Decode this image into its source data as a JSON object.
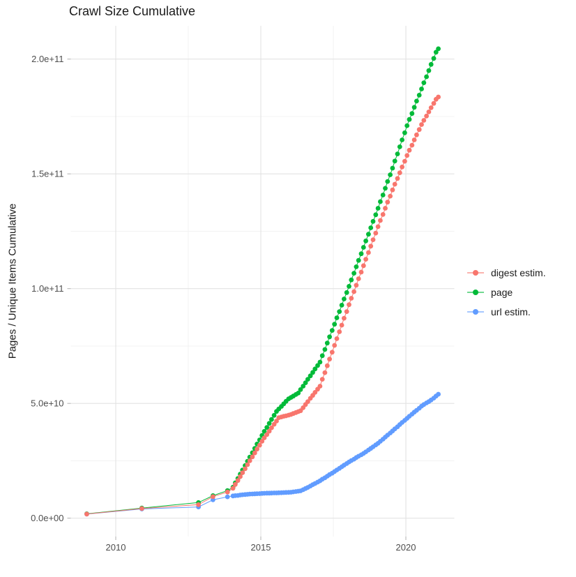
{
  "title": "Crawl Size Cumulative",
  "legend": {
    "items": [
      {
        "label": "digest estim.",
        "color": "#F8766D"
      },
      {
        "label": "page",
        "color": "#00BA38"
      },
      {
        "label": "url estim.",
        "color": "#619CFF"
      }
    ]
  },
  "colors": {
    "digest": "#F8766D",
    "page": "#00BA38",
    "url": "#619CFF",
    "grid_major": "#E2E2E2",
    "grid_minor": "#EFEFEF",
    "tick_mark": "#B0B0B0",
    "tick_label": "#4D4D4D",
    "title_text": "#1a1a1a"
  },
  "chart_data": {
    "type": "scatter",
    "title": "Crawl Size Cumulative",
    "xlabel": "",
    "ylabel": "Pages / Unique Items Cumulative",
    "value_unit": "pages, values in billions (1e9)",
    "grid": true,
    "legend_position": "right",
    "xlim": [
      2008.45,
      2021.67
    ],
    "ylim_billions": [
      -8,
      214.5
    ],
    "x_ticks": [
      {
        "value": 2010,
        "label": "2010"
      },
      {
        "value": 2015,
        "label": "2015"
      },
      {
        "value": 2020,
        "label": "2020"
      }
    ],
    "y_ticks": [
      {
        "value": 0,
        "label": "0.0e+00"
      },
      {
        "value": 50,
        "label": "5.0e+10"
      },
      {
        "value": 100,
        "label": "1.0e+11"
      },
      {
        "value": 150,
        "label": "1.5e+11"
      },
      {
        "value": 200,
        "label": "2.0e+11"
      }
    ],
    "x_minor": [
      2012.5,
      2017.5
    ],
    "y_minor": [
      25,
      75,
      125,
      175
    ],
    "z_order": [
      "page",
      "url estim.",
      "digest estim."
    ],
    "series": [
      {
        "name": "digest estim.",
        "color": "#F8766D",
        "points": [
          [
            2009.0,
            1.8
          ],
          [
            2010.9,
            4.2
          ],
          [
            2012.85,
            5.9
          ],
          [
            2013.35,
            9.4
          ],
          [
            2013.85,
            11.4
          ],
          [
            2014.04,
            13.0
          ],
          [
            2014.12,
            14.7
          ],
          [
            2014.21,
            16.4
          ],
          [
            2014.29,
            18.1
          ],
          [
            2014.37,
            19.8
          ],
          [
            2014.46,
            21.5
          ],
          [
            2014.54,
            23.3
          ],
          [
            2014.62,
            25.0
          ],
          [
            2014.71,
            26.7
          ],
          [
            2014.79,
            28.4
          ],
          [
            2014.87,
            30.1
          ],
          [
            2014.96,
            31.8
          ],
          [
            2015.04,
            33.5
          ],
          [
            2015.12,
            35.0
          ],
          [
            2015.21,
            36.4
          ],
          [
            2015.29,
            37.9
          ],
          [
            2015.37,
            39.4
          ],
          [
            2015.46,
            40.9
          ],
          [
            2015.54,
            42.3
          ],
          [
            2015.62,
            43.8
          ],
          [
            2015.71,
            44.1
          ],
          [
            2015.79,
            44.4
          ],
          [
            2015.87,
            44.6
          ],
          [
            2015.96,
            44.9
          ],
          [
            2016.04,
            45.2
          ],
          [
            2016.12,
            45.6
          ],
          [
            2016.21,
            46.0
          ],
          [
            2016.29,
            46.4
          ],
          [
            2016.37,
            46.8
          ],
          [
            2016.46,
            48.1
          ],
          [
            2016.54,
            49.5
          ],
          [
            2016.62,
            50.8
          ],
          [
            2016.71,
            52.2
          ],
          [
            2016.79,
            53.5
          ],
          [
            2016.87,
            54.8
          ],
          [
            2016.96,
            56.2
          ],
          [
            2017.04,
            57.5
          ],
          [
            2017.12,
            60.5
          ],
          [
            2017.21,
            63.4
          ],
          [
            2017.29,
            66.4
          ],
          [
            2017.37,
            69.3
          ],
          [
            2017.46,
            72.3
          ],
          [
            2017.54,
            75.3
          ],
          [
            2017.62,
            78.2
          ],
          [
            2017.71,
            81.2
          ],
          [
            2017.79,
            84.1
          ],
          [
            2017.87,
            87.1
          ],
          [
            2017.96,
            90.0
          ],
          [
            2018.04,
            93.0
          ],
          [
            2018.12,
            95.8
          ],
          [
            2018.21,
            98.7
          ],
          [
            2018.29,
            101.5
          ],
          [
            2018.37,
            104.3
          ],
          [
            2018.46,
            107.2
          ],
          [
            2018.54,
            110.0
          ],
          [
            2018.62,
            112.8
          ],
          [
            2018.71,
            115.7
          ],
          [
            2018.79,
            118.5
          ],
          [
            2018.87,
            121.3
          ],
          [
            2018.96,
            124.2
          ],
          [
            2019.04,
            127.0
          ],
          [
            2019.12,
            129.7
          ],
          [
            2019.21,
            132.3
          ],
          [
            2019.29,
            135.0
          ],
          [
            2019.37,
            137.7
          ],
          [
            2019.46,
            140.3
          ],
          [
            2019.54,
            143.0
          ],
          [
            2019.62,
            145.5
          ],
          [
            2019.71,
            148.0
          ],
          [
            2019.79,
            150.5
          ],
          [
            2019.87,
            153.0
          ],
          [
            2019.96,
            155.5
          ],
          [
            2020.04,
            158.0
          ],
          [
            2020.12,
            160.3
          ],
          [
            2020.21,
            162.5
          ],
          [
            2020.29,
            164.8
          ],
          [
            2020.37,
            167.0
          ],
          [
            2020.46,
            169.3
          ],
          [
            2020.54,
            171.5
          ],
          [
            2020.62,
            173.3
          ],
          [
            2020.71,
            175.2
          ],
          [
            2020.79,
            177.0
          ],
          [
            2020.87,
            178.8
          ],
          [
            2020.96,
            180.7
          ],
          [
            2021.04,
            182.5
          ],
          [
            2021.12,
            183.5
          ]
        ]
      },
      {
        "name": "page",
        "color": "#00BA38",
        "points": [
          [
            2009.0,
            1.9
          ],
          [
            2010.9,
            4.4
          ],
          [
            2012.85,
            6.8
          ],
          [
            2013.35,
            9.8
          ],
          [
            2013.85,
            12.0
          ],
          [
            2014.04,
            13.5
          ],
          [
            2014.12,
            15.4
          ],
          [
            2014.21,
            17.3
          ],
          [
            2014.29,
            19.2
          ],
          [
            2014.37,
            21.0
          ],
          [
            2014.46,
            22.9
          ],
          [
            2014.54,
            24.8
          ],
          [
            2014.62,
            26.6
          ],
          [
            2014.71,
            28.5
          ],
          [
            2014.79,
            30.4
          ],
          [
            2014.87,
            32.3
          ],
          [
            2014.96,
            34.1
          ],
          [
            2015.04,
            36.0
          ],
          [
            2015.12,
            37.8
          ],
          [
            2015.21,
            39.5
          ],
          [
            2015.29,
            41.3
          ],
          [
            2015.37,
            43.0
          ],
          [
            2015.46,
            44.8
          ],
          [
            2015.54,
            46.5
          ],
          [
            2015.62,
            47.6
          ],
          [
            2015.71,
            48.7
          ],
          [
            2015.79,
            49.8
          ],
          [
            2015.87,
            50.9
          ],
          [
            2015.96,
            52.0
          ],
          [
            2016.04,
            52.6
          ],
          [
            2016.12,
            53.2
          ],
          [
            2016.21,
            53.9
          ],
          [
            2016.29,
            54.5
          ],
          [
            2016.37,
            56.0
          ],
          [
            2016.46,
            57.5
          ],
          [
            2016.54,
            59.0
          ],
          [
            2016.62,
            60.5
          ],
          [
            2016.71,
            62.0
          ],
          [
            2016.79,
            63.5
          ],
          [
            2016.87,
            65.0
          ],
          [
            2016.96,
            66.5
          ],
          [
            2017.04,
            68.0
          ],
          [
            2017.12,
            70.8
          ],
          [
            2017.21,
            73.5
          ],
          [
            2017.29,
            76.3
          ],
          [
            2017.37,
            79.0
          ],
          [
            2017.46,
            81.8
          ],
          [
            2017.54,
            84.5
          ],
          [
            2017.62,
            87.3
          ],
          [
            2017.71,
            90.0
          ],
          [
            2017.79,
            92.8
          ],
          [
            2017.87,
            95.5
          ],
          [
            2017.96,
            98.3
          ],
          [
            2018.04,
            101.0
          ],
          [
            2018.12,
            103.8
          ],
          [
            2018.21,
            106.7
          ],
          [
            2018.29,
            109.5
          ],
          [
            2018.37,
            112.3
          ],
          [
            2018.46,
            115.2
          ],
          [
            2018.54,
            118.0
          ],
          [
            2018.62,
            120.8
          ],
          [
            2018.71,
            123.7
          ],
          [
            2018.79,
            126.5
          ],
          [
            2018.87,
            129.3
          ],
          [
            2018.96,
            132.2
          ],
          [
            2019.04,
            135.0
          ],
          [
            2019.12,
            137.9
          ],
          [
            2019.21,
            140.8
          ],
          [
            2019.29,
            143.7
          ],
          [
            2019.37,
            146.7
          ],
          [
            2019.46,
            149.6
          ],
          [
            2019.54,
            152.5
          ],
          [
            2019.62,
            155.6
          ],
          [
            2019.71,
            158.7
          ],
          [
            2019.79,
            161.8
          ],
          [
            2019.87,
            164.8
          ],
          [
            2019.96,
            167.9
          ],
          [
            2020.04,
            171.0
          ],
          [
            2020.12,
            173.7
          ],
          [
            2020.21,
            176.3
          ],
          [
            2020.29,
            179.0
          ],
          [
            2020.37,
            181.7
          ],
          [
            2020.46,
            184.3
          ],
          [
            2020.54,
            187.0
          ],
          [
            2020.62,
            189.7
          ],
          [
            2020.71,
            192.3
          ],
          [
            2020.79,
            195.0
          ],
          [
            2020.87,
            197.7
          ],
          [
            2020.96,
            200.3
          ],
          [
            2021.04,
            203.0
          ],
          [
            2021.12,
            204.5
          ]
        ]
      },
      {
        "name": "url estim.",
        "color": "#619CFF",
        "points": [
          [
            2009.0,
            1.75
          ],
          [
            2010.9,
            4.0
          ],
          [
            2012.85,
            4.9
          ],
          [
            2013.35,
            8.0
          ],
          [
            2013.85,
            9.3
          ],
          [
            2014.04,
            9.7
          ],
          [
            2014.12,
            9.8
          ],
          [
            2014.21,
            9.9
          ],
          [
            2014.29,
            10.1
          ],
          [
            2014.37,
            10.2
          ],
          [
            2014.46,
            10.3
          ],
          [
            2014.54,
            10.4
          ],
          [
            2014.62,
            10.5
          ],
          [
            2014.71,
            10.55
          ],
          [
            2014.79,
            10.6
          ],
          [
            2014.87,
            10.65
          ],
          [
            2014.96,
            10.7
          ],
          [
            2015.04,
            10.8
          ],
          [
            2015.12,
            10.85
          ],
          [
            2015.21,
            10.9
          ],
          [
            2015.29,
            10.9
          ],
          [
            2015.37,
            10.95
          ],
          [
            2015.46,
            11.0
          ],
          [
            2015.54,
            11.0
          ],
          [
            2015.62,
            11.05
          ],
          [
            2015.71,
            11.1
          ],
          [
            2015.79,
            11.15
          ],
          [
            2015.87,
            11.2
          ],
          [
            2015.96,
            11.25
          ],
          [
            2016.04,
            11.3
          ],
          [
            2016.12,
            11.45
          ],
          [
            2016.21,
            11.6
          ],
          [
            2016.29,
            11.75
          ],
          [
            2016.37,
            11.9
          ],
          [
            2016.46,
            12.4
          ],
          [
            2016.54,
            12.9
          ],
          [
            2016.62,
            13.4
          ],
          [
            2016.71,
            14.0
          ],
          [
            2016.79,
            14.6
          ],
          [
            2016.87,
            15.1
          ],
          [
            2016.96,
            15.7
          ],
          [
            2017.04,
            16.3
          ],
          [
            2017.12,
            17.0
          ],
          [
            2017.21,
            17.6
          ],
          [
            2017.29,
            18.3
          ],
          [
            2017.37,
            19.0
          ],
          [
            2017.46,
            19.6
          ],
          [
            2017.54,
            20.3
          ],
          [
            2017.62,
            21.0
          ],
          [
            2017.71,
            21.7
          ],
          [
            2017.79,
            22.4
          ],
          [
            2017.87,
            23.1
          ],
          [
            2017.96,
            23.8
          ],
          [
            2018.04,
            24.5
          ],
          [
            2018.12,
            25.1
          ],
          [
            2018.21,
            25.7
          ],
          [
            2018.29,
            26.4
          ],
          [
            2018.37,
            27.0
          ],
          [
            2018.46,
            27.6
          ],
          [
            2018.54,
            28.2
          ],
          [
            2018.62,
            28.9
          ],
          [
            2018.71,
            29.7
          ],
          [
            2018.79,
            30.4
          ],
          [
            2018.87,
            31.1
          ],
          [
            2018.96,
            31.9
          ],
          [
            2019.04,
            32.6
          ],
          [
            2019.12,
            33.5
          ],
          [
            2019.21,
            34.4
          ],
          [
            2019.29,
            35.3
          ],
          [
            2019.37,
            36.2
          ],
          [
            2019.46,
            37.1
          ],
          [
            2019.54,
            38.0
          ],
          [
            2019.62,
            38.9
          ],
          [
            2019.71,
            39.8
          ],
          [
            2019.79,
            40.8
          ],
          [
            2019.87,
            41.7
          ],
          [
            2019.96,
            42.6
          ],
          [
            2020.04,
            43.5
          ],
          [
            2020.12,
            44.4
          ],
          [
            2020.21,
            45.3
          ],
          [
            2020.29,
            46.2
          ],
          [
            2020.37,
            47.0
          ],
          [
            2020.46,
            47.9
          ],
          [
            2020.54,
            48.8
          ],
          [
            2020.62,
            49.5
          ],
          [
            2020.71,
            50.2
          ],
          [
            2020.79,
            50.8
          ],
          [
            2020.87,
            51.5
          ],
          [
            2020.96,
            52.3
          ],
          [
            2021.04,
            53.2
          ],
          [
            2021.12,
            54.0
          ]
        ]
      }
    ]
  }
}
